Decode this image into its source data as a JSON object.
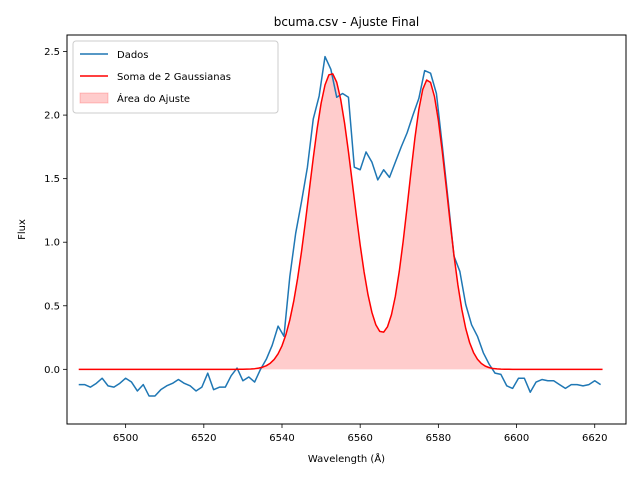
{
  "chart_data": {
    "type": "line",
    "title": "bcuma.csv - Ajuste Final",
    "xlabel": "Wavelength (Å)",
    "ylabel": "Flux",
    "xlim": [
      6485,
      6628
    ],
    "ylim": [
      -0.43,
      2.63
    ],
    "xticks": [
      6500,
      6520,
      6540,
      6560,
      6580,
      6600,
      6620
    ],
    "yticks": [
      0.0,
      0.5,
      1.0,
      1.5,
      2.0,
      2.5
    ],
    "grid": false,
    "legend_position": "top-left",
    "series": [
      {
        "name": "Dados",
        "color": "#1f77b4",
        "style": "line",
        "points": [
          [
            6488,
            -0.12
          ],
          [
            6489.5,
            -0.12
          ],
          [
            6491,
            -0.14
          ],
          [
            6492.5,
            -0.11
          ],
          [
            6494,
            -0.07
          ],
          [
            6495.5,
            -0.13
          ],
          [
            6497,
            -0.14
          ],
          [
            6498.5,
            -0.11
          ],
          [
            6500,
            -0.07
          ],
          [
            6501.5,
            -0.1
          ],
          [
            6503,
            -0.17
          ],
          [
            6504.5,
            -0.12
          ],
          [
            6506,
            -0.21
          ],
          [
            6507.5,
            -0.21
          ],
          [
            6509,
            -0.16
          ],
          [
            6510.5,
            -0.13
          ],
          [
            6512,
            -0.11
          ],
          [
            6513.5,
            -0.08
          ],
          [
            6515,
            -0.11
          ],
          [
            6516.5,
            -0.13
          ],
          [
            6518,
            -0.17
          ],
          [
            6519.5,
            -0.14
          ],
          [
            6521,
            -0.03
          ],
          [
            6522.5,
            -0.16
          ],
          [
            6524,
            -0.14
          ],
          [
            6525.5,
            -0.14
          ],
          [
            6527,
            -0.05
          ],
          [
            6528.5,
            0.01
          ],
          [
            6530,
            -0.09
          ],
          [
            6531.5,
            -0.06
          ],
          [
            6533,
            -0.1
          ],
          [
            6534.5,
            0.0
          ],
          [
            6536,
            0.08
          ],
          [
            6537.5,
            0.19
          ],
          [
            6539,
            0.34
          ],
          [
            6540.5,
            0.26
          ],
          [
            6542,
            0.73
          ],
          [
            6543.5,
            1.07
          ],
          [
            6545,
            1.32
          ],
          [
            6546.5,
            1.59
          ],
          [
            6548,
            1.97
          ],
          [
            6549.5,
            2.15
          ],
          [
            6551,
            2.46
          ],
          [
            6552.5,
            2.36
          ],
          [
            6554,
            2.14
          ],
          [
            6555.5,
            2.17
          ],
          [
            6557,
            2.14
          ],
          [
            6558.5,
            1.59
          ],
          [
            6560,
            1.57
          ],
          [
            6561.5,
            1.71
          ],
          [
            6563,
            1.63
          ],
          [
            6564.5,
            1.49
          ],
          [
            6566,
            1.57
          ],
          [
            6567.5,
            1.51
          ],
          [
            6569,
            1.63
          ],
          [
            6570.5,
            1.75
          ],
          [
            6572,
            1.86
          ],
          [
            6573.5,
            2.0
          ],
          [
            6575,
            2.13
          ],
          [
            6576.5,
            2.35
          ],
          [
            6578,
            2.33
          ],
          [
            6579.5,
            2.17
          ],
          [
            6581,
            1.76
          ],
          [
            6582.5,
            1.33
          ],
          [
            6584,
            0.89
          ],
          [
            6585.5,
            0.77
          ],
          [
            6587,
            0.51
          ],
          [
            6588.5,
            0.35
          ],
          [
            6590,
            0.26
          ],
          [
            6591.5,
            0.13
          ],
          [
            6593,
            0.04
          ],
          [
            6594.5,
            -0.03
          ],
          [
            6596,
            -0.04
          ],
          [
            6597.5,
            -0.13
          ],
          [
            6599,
            -0.15
          ],
          [
            6600.5,
            -0.07
          ],
          [
            6602,
            -0.07
          ],
          [
            6603.5,
            -0.18
          ],
          [
            6605,
            -0.1
          ],
          [
            6606.5,
            -0.08
          ],
          [
            6608,
            -0.09
          ],
          [
            6609.5,
            -0.09
          ],
          [
            6611,
            -0.12
          ],
          [
            6612.5,
            -0.15
          ],
          [
            6614,
            -0.12
          ],
          [
            6615.5,
            -0.12
          ],
          [
            6617,
            -0.13
          ],
          [
            6618.5,
            -0.12
          ],
          [
            6620,
            -0.09
          ],
          [
            6621.5,
            -0.12
          ]
        ]
      },
      {
        "name": "Soma de 2 Gaussianas",
        "color": "#ff0000",
        "style": "line",
        "model": {
          "x_start": 6488,
          "x_end": 6622,
          "step": 1,
          "components": [
            {
              "amplitude": 2.33,
              "center": 6552.6,
              "sigma": 5.6
            },
            {
              "amplitude": 2.28,
              "center": 6577.3,
              "sigma": 4.9
            }
          ]
        }
      },
      {
        "name": "Área do Ajuste",
        "color": "#ff0000",
        "style": "fill",
        "opacity": 0.2,
        "fill_of": "Soma de 2 Gaussianas"
      }
    ]
  }
}
